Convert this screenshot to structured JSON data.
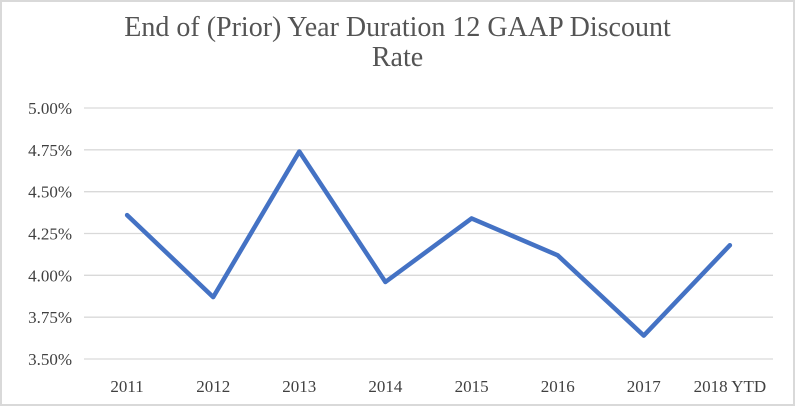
{
  "chart_data": {
    "type": "line",
    "title": "End of (Prior) Year Duration 12 GAAP Discount Rate",
    "categories": [
      "2011",
      "2012",
      "2013",
      "2014",
      "2015",
      "2016",
      "2017",
      "2018 YTD"
    ],
    "series": [
      {
        "name": "End of (Prior) Year Duration 12 GAAP Discount Rate",
        "values": [
          4.36,
          3.87,
          4.74,
          3.96,
          4.34,
          4.12,
          3.64,
          4.18
        ]
      }
    ],
    "y_ticks": [
      {
        "value": 5.0,
        "label": "5.00%"
      },
      {
        "value": 4.75,
        "label": "4.75%"
      },
      {
        "value": 4.5,
        "label": "4.50%"
      },
      {
        "value": 4.25,
        "label": "4.25%"
      },
      {
        "value": 4.0,
        "label": "4.00%"
      },
      {
        "value": 3.75,
        "label": "3.75%"
      },
      {
        "value": 3.5,
        "label": "3.50%"
      }
    ],
    "ylim": [
      3.5,
      5.0
    ],
    "xlabel": "",
    "ylabel": "",
    "grid": "horizontal",
    "legend": "none",
    "data_labels": "none",
    "colors": {
      "line": "#4472C4",
      "gridline": "#d9d9d9",
      "tick_text": "#404040",
      "title_text": "#545454",
      "frame_border": "#d9d9d9",
      "background": "#ffffff"
    }
  }
}
